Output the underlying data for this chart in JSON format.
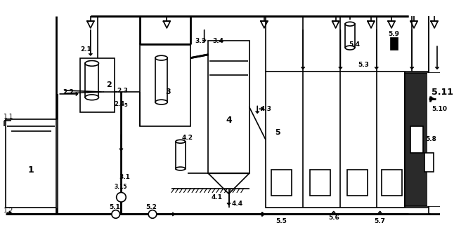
{
  "bg": "#ffffff",
  "lw": 1.2,
  "lw2": 2.0,
  "fs": 6.5,
  "fs_big": 9,
  "fs_med": 8
}
